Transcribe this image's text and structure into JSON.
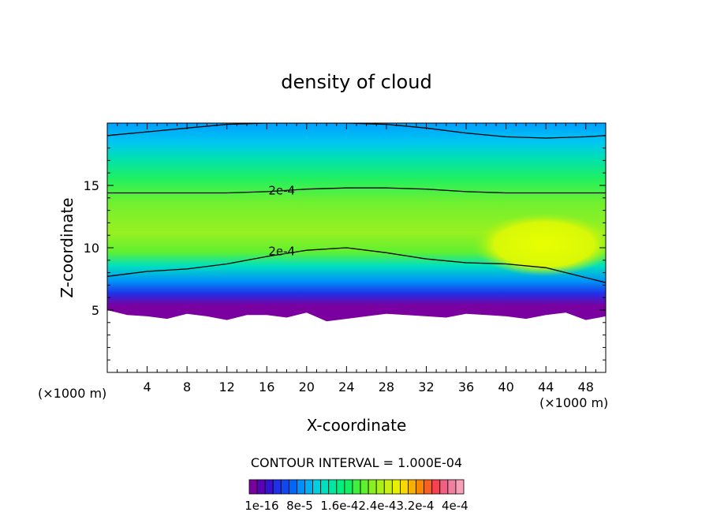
{
  "chart_data": {
    "type": "heatmap",
    "title": "density of cloud",
    "xlabel": "X-coordinate",
    "ylabel": "Z-coordinate",
    "x_unit_left": "(×1000 m)",
    "x_unit_right": "(×1000 m)",
    "xlim": [
      0,
      50
    ],
    "ylim": [
      0,
      20
    ],
    "x_ticks": [
      "4",
      "8",
      "12",
      "16",
      "20",
      "24",
      "28",
      "32",
      "36",
      "40",
      "44",
      "48"
    ],
    "x_tick_values": [
      4,
      8,
      12,
      16,
      20,
      24,
      28,
      32,
      36,
      40,
      44,
      48
    ],
    "y_ticks": [
      "5",
      "10",
      "15"
    ],
    "y_tick_values": [
      5,
      10,
      15
    ],
    "contour_interval_text": "CONTOUR INTERVAL = 1.000E-04",
    "contour_labels": [
      {
        "text": "2e-4",
        "x": 17.5,
        "z": 14.6
      },
      {
        "text": "2e-4",
        "x": 17.5,
        "z": 9.7
      }
    ],
    "contour_lines": [
      {
        "x": [
          0,
          4,
          8,
          12,
          16,
          20,
          24,
          28,
          32,
          36,
          40,
          44,
          48,
          50
        ],
        "z": [
          19.0,
          19.3,
          19.6,
          19.9,
          20.0,
          20.0,
          20.0,
          19.9,
          19.6,
          19.2,
          18.9,
          18.8,
          18.9,
          19.0
        ]
      },
      {
        "x": [
          0,
          4,
          8,
          12,
          16,
          20,
          24,
          28,
          32,
          36,
          40,
          44,
          48,
          50
        ],
        "z": [
          14.4,
          14.4,
          14.4,
          14.4,
          14.5,
          14.7,
          14.8,
          14.8,
          14.7,
          14.5,
          14.4,
          14.4,
          14.4,
          14.4
        ]
      },
      {
        "x": [
          0,
          4,
          8,
          12,
          16,
          20,
          24,
          28,
          32,
          36,
          40,
          44,
          48,
          50
        ],
        "z": [
          7.7,
          8.1,
          8.3,
          8.7,
          9.3,
          9.8,
          10.0,
          9.6,
          9.1,
          8.8,
          8.7,
          8.4,
          7.6,
          7.2
        ]
      }
    ],
    "cloud_base_z": [
      5.0,
      4.6,
      4.5,
      4.3,
      4.7,
      4.5,
      4.2,
      4.6,
      4.6,
      4.4,
      4.8,
      4.1,
      4.3,
      4.5,
      4.7,
      4.6,
      4.5,
      4.4,
      4.7,
      4.6,
      4.5,
      4.3,
      4.6,
      4.8,
      4.2,
      4.5
    ],
    "colorbar_labels": [
      "1e-16",
      "8e-5",
      "1.6e-4",
      "2.4e-4",
      "3.2e-4",
      "4e-4"
    ],
    "colorbar_label_text": "1e-16  8e-5  1.6e-42.4e-43.2e-4  4e-4",
    "colorbar_colors": [
      "#7a00a0",
      "#5a00b8",
      "#3a10d0",
      "#2030e8",
      "#1048f0",
      "#0068f8",
      "#0090f8",
      "#00b0f0",
      "#00d0e0",
      "#00e0c0",
      "#00e8a0",
      "#00f080",
      "#10f060",
      "#40f040",
      "#60f030",
      "#88f020",
      "#a8f018",
      "#c8f010",
      "#e8f000",
      "#f8d800",
      "#f8b000",
      "#f88800",
      "#f86020",
      "#f84050",
      "#f06080",
      "#f080a0",
      "#f8a0b8"
    ],
    "field_colors": {
      "top_blue": "#00aaff",
      "cyan": "#00d8e0",
      "green": "#40f040",
      "yellowgreen": "#a8f018",
      "yellow": "#e0ff00",
      "purple": "#7a00a0"
    }
  }
}
